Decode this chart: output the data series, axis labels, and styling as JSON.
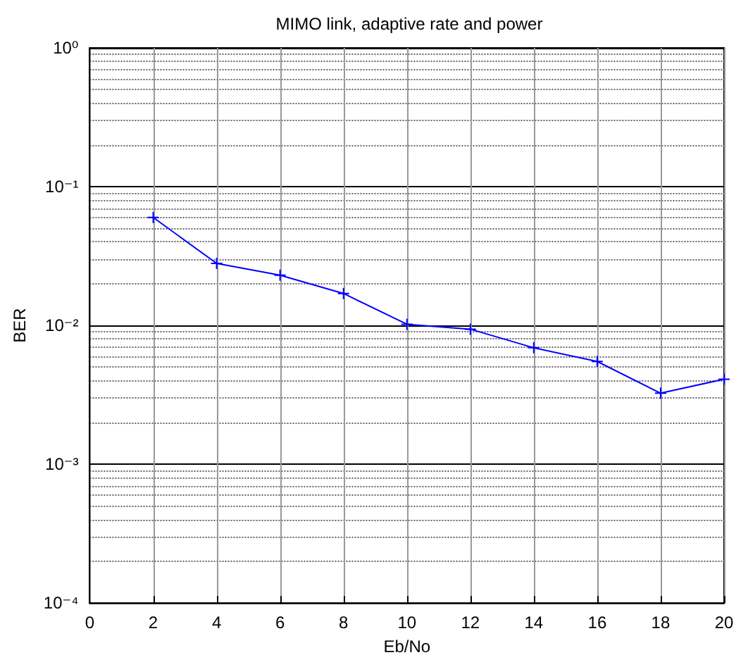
{
  "chart_data": {
    "type": "line",
    "title": "MIMO link, adaptive rate and power",
    "xlabel": "Eb/No",
    "ylabel": "BER",
    "x": [
      2,
      4,
      6,
      8,
      10,
      12,
      14,
      16,
      18,
      20
    ],
    "series": [
      {
        "color": "#0000ff",
        "values": [
          0.06,
          0.028,
          0.023,
          0.017,
          0.0102,
          0.0094,
          0.0069,
          0.0055,
          0.00325,
          0.0041
        ]
      }
    ],
    "xlim": [
      0,
      20
    ],
    "xticks": [
      0,
      2,
      4,
      6,
      8,
      10,
      12,
      14,
      16,
      18,
      20
    ],
    "ylim": [
      0.0001,
      1
    ],
    "yticks": [
      {
        "value": 0.0001,
        "label": "10⁻⁴"
      },
      {
        "value": 0.001,
        "label": "10⁻³"
      },
      {
        "value": 0.01,
        "label": "10⁻²"
      },
      {
        "value": 0.1,
        "label": "10⁻¹"
      },
      {
        "value": 1,
        "label": "10⁰"
      }
    ],
    "log": "y",
    "grid": true,
    "marker": "cross",
    "line_style": "solid"
  }
}
